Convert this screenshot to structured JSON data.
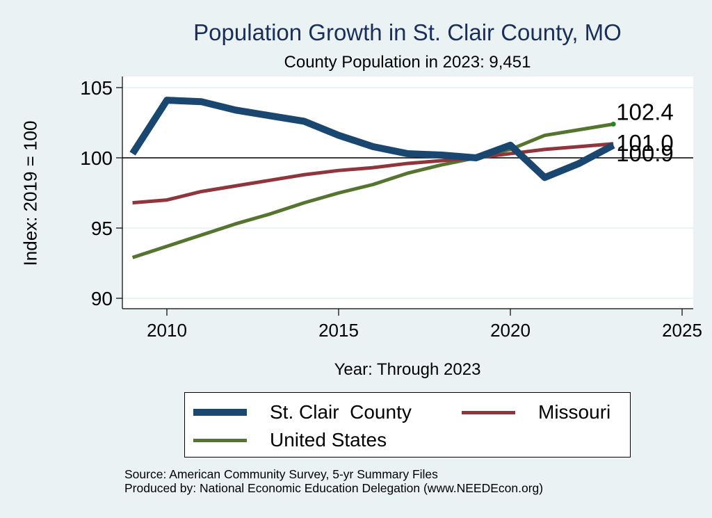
{
  "chart_data": {
    "type": "line",
    "title": "Population Growth in St. Clair County, MO",
    "subtitle": "County Population in 2023: 9,451",
    "xlabel": "Year: Through 2023",
    "ylabel": "Index: 2019 = 100",
    "xlim": [
      2009,
      2025.4
    ],
    "ylim": [
      89.2,
      105.8
    ],
    "xticks": [
      2010,
      2015,
      2020,
      2025
    ],
    "yticks": [
      90,
      95,
      100,
      105
    ],
    "reference_line": 100,
    "grid": "horizontal",
    "legend_position": "bottom",
    "x": [
      2009,
      2010,
      2011,
      2012,
      2013,
      2014,
      2015,
      2016,
      2017,
      2018,
      2019,
      2020,
      2021,
      2022,
      2023
    ],
    "series": [
      {
        "name": "St. Clair  County",
        "color": "#1a476f",
        "width": 10,
        "values": [
          100.3,
          104.1,
          104.0,
          103.4,
          103.0,
          102.6,
          101.6,
          100.8,
          100.3,
          100.2,
          100.0,
          100.9,
          98.6,
          99.6,
          100.9
        ],
        "end_label": "100.9"
      },
      {
        "name": "Missouri",
        "color": "#90353b",
        "width": 5,
        "values": [
          96.8,
          97.0,
          97.6,
          98.0,
          98.4,
          98.8,
          99.1,
          99.3,
          99.6,
          99.8,
          100.0,
          100.3,
          100.6,
          100.8,
          101.0
        ],
        "end_label": "101.0"
      },
      {
        "name": "United States",
        "color": "#55752f",
        "width": 5,
        "values": [
          92.9,
          93.7,
          94.5,
          95.3,
          96.0,
          96.8,
          97.5,
          98.1,
          98.9,
          99.5,
          100.0,
          100.6,
          101.6,
          102.0,
          102.4
        ],
        "end_label": "102.4"
      }
    ]
  },
  "footer": {
    "source": "Source: American Community Survey, 5-yr Summary Files",
    "produced_by": "Produced by: National Economic Education Delegation (www.NEEDEcon.org)"
  }
}
